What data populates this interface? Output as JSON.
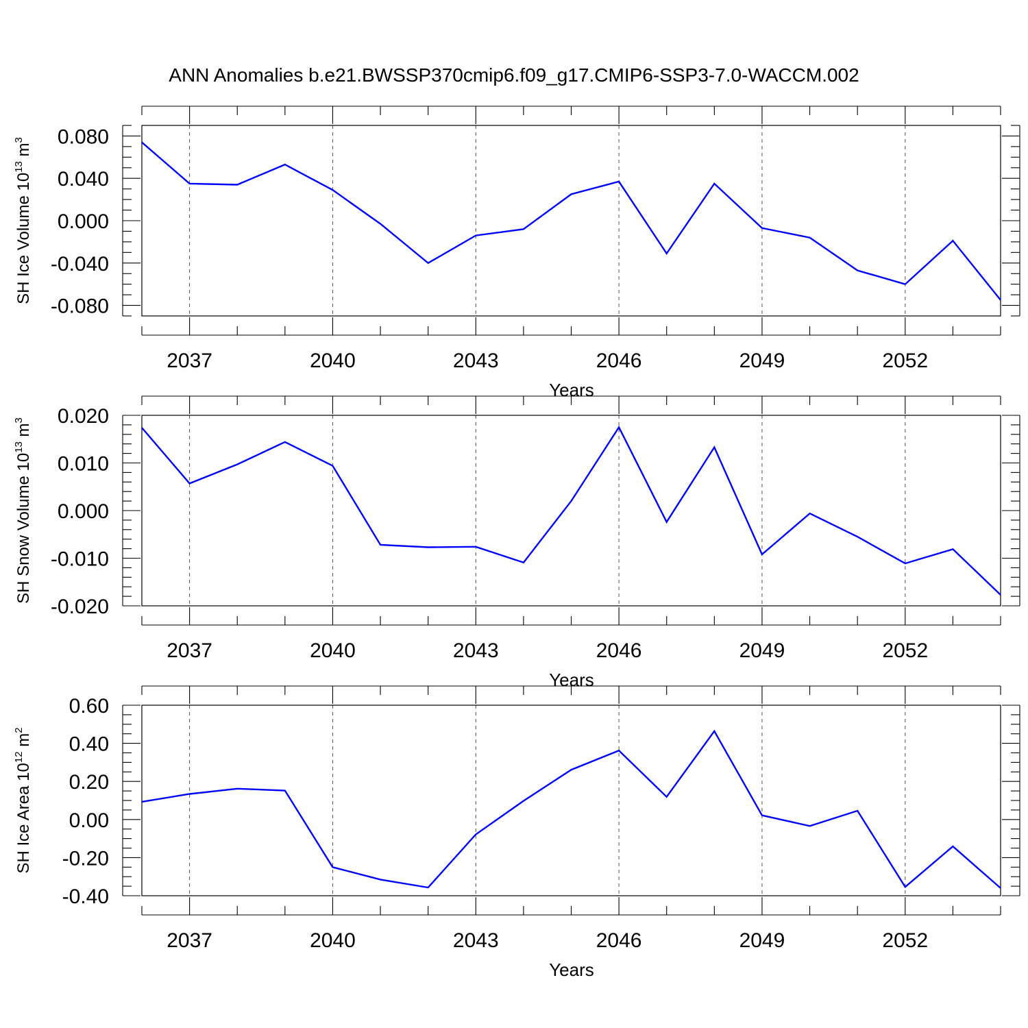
{
  "title": "ANN Anomalies b.e21.BWSSP370cmip6.f09_g17.CMIP6-SSP3-7.0-WACCM.002",
  "colors": {
    "series": "#0000ff",
    "axis": "#000000",
    "grid": "#555555"
  },
  "chart_data": [
    {
      "type": "line",
      "ylabel": {
        "text": "SH Ice Volume 10",
        "sup": "13",
        "unit": " m",
        "unit_sup": "3"
      },
      "xlabel": "Years",
      "x": [
        2036,
        2037,
        2038,
        2039,
        2040,
        2041,
        2042,
        2043,
        2044,
        2045,
        2046,
        2047,
        2048,
        2049,
        2050,
        2051,
        2052,
        2053,
        2054
      ],
      "values": [
        0.074,
        0.035,
        0.034,
        0.053,
        0.029,
        -0.003,
        -0.04,
        -0.014,
        -0.008,
        0.025,
        0.037,
        -0.031,
        0.035,
        -0.007,
        -0.016,
        -0.047,
        -0.06,
        -0.019,
        -0.075
      ],
      "xlim": [
        2036,
        2054
      ],
      "ylim": [
        -0.09,
        0.09
      ],
      "yticks": [
        -0.08,
        -0.04,
        0.0,
        0.04,
        0.08
      ],
      "ytick_labels": [
        "-0.080",
        "-0.040",
        "0.000",
        "0.040",
        "0.080"
      ],
      "yminor": [
        -0.09,
        -0.07,
        -0.06,
        -0.05,
        -0.03,
        -0.02,
        -0.01,
        0.01,
        0.02,
        0.03,
        0.05,
        0.06,
        0.07,
        0.09
      ],
      "xticks": [
        2037,
        2040,
        2043,
        2046,
        2049,
        2052
      ],
      "xtick_labels": [
        "2037",
        "2040",
        "2043",
        "2046",
        "2049",
        "2052"
      ],
      "grid": "vertical dashed at major x ticks"
    },
    {
      "type": "line",
      "ylabel": {
        "text": "SH Snow Volume 10",
        "sup": "13",
        "unit": " m",
        "unit_sup": "3"
      },
      "xlabel": "Years",
      "x": [
        2036,
        2037,
        2038,
        2039,
        2040,
        2041,
        2042,
        2043,
        2044,
        2045,
        2046,
        2047,
        2048,
        2049,
        2050,
        2051,
        2052,
        2053,
        2054
      ],
      "values": [
        0.0174,
        0.0057,
        0.0097,
        0.0144,
        0.0094,
        -0.0072,
        -0.0077,
        -0.0076,
        -0.0109,
        0.002,
        0.0175,
        -0.0024,
        0.0133,
        -0.0092,
        -0.0006,
        -0.0055,
        -0.0111,
        -0.0081,
        -0.0177
      ],
      "xlim": [
        2036,
        2054
      ],
      "ylim": [
        -0.02,
        0.02
      ],
      "yticks": [
        -0.02,
        -0.01,
        0.0,
        0.01,
        0.02
      ],
      "ytick_labels": [
        "-0.020",
        "-0.010",
        "0.000",
        "0.010",
        "0.020"
      ],
      "yminor": [
        -0.018,
        -0.016,
        -0.014,
        -0.012,
        -0.008,
        -0.006,
        -0.004,
        -0.002,
        0.002,
        0.004,
        0.006,
        0.008,
        0.012,
        0.014,
        0.016,
        0.018
      ],
      "xticks": [
        2037,
        2040,
        2043,
        2046,
        2049,
        2052
      ],
      "xtick_labels": [
        "2037",
        "2040",
        "2043",
        "2046",
        "2049",
        "2052"
      ],
      "grid": "vertical dashed at major x ticks"
    },
    {
      "type": "line",
      "ylabel": {
        "text": "SH Ice Area 10",
        "sup": "12",
        "unit": " m",
        "unit_sup": "2"
      },
      "xlabel": "Years",
      "x": [
        2036,
        2037,
        2038,
        2039,
        2040,
        2041,
        2042,
        2043,
        2044,
        2045,
        2046,
        2047,
        2048,
        2049,
        2050,
        2051,
        2052,
        2053,
        2054
      ],
      "values": [
        0.093,
        0.134,
        0.162,
        0.152,
        -0.25,
        -0.315,
        -0.357,
        -0.078,
        0.098,
        0.261,
        0.362,
        0.119,
        0.464,
        0.022,
        -0.034,
        0.046,
        -0.354,
        -0.141,
        -0.36
      ],
      "xlim": [
        2036,
        2054
      ],
      "ylim": [
        -0.4,
        0.6
      ],
      "yticks": [
        -0.4,
        -0.2,
        0.0,
        0.2,
        0.4,
        0.6
      ],
      "ytick_labels": [
        "-0.40",
        "-0.20",
        "0.00",
        "0.20",
        "0.40",
        "0.60"
      ],
      "yminor": [
        -0.35,
        -0.3,
        -0.25,
        -0.15,
        -0.1,
        -0.05,
        0.05,
        0.1,
        0.15,
        0.25,
        0.3,
        0.35,
        0.45,
        0.5,
        0.55
      ],
      "xticks": [
        2037,
        2040,
        2043,
        2046,
        2049,
        2052
      ],
      "xtick_labels": [
        "2037",
        "2040",
        "2043",
        "2046",
        "2049",
        "2052"
      ],
      "grid": "vertical dashed at major x ticks"
    }
  ]
}
